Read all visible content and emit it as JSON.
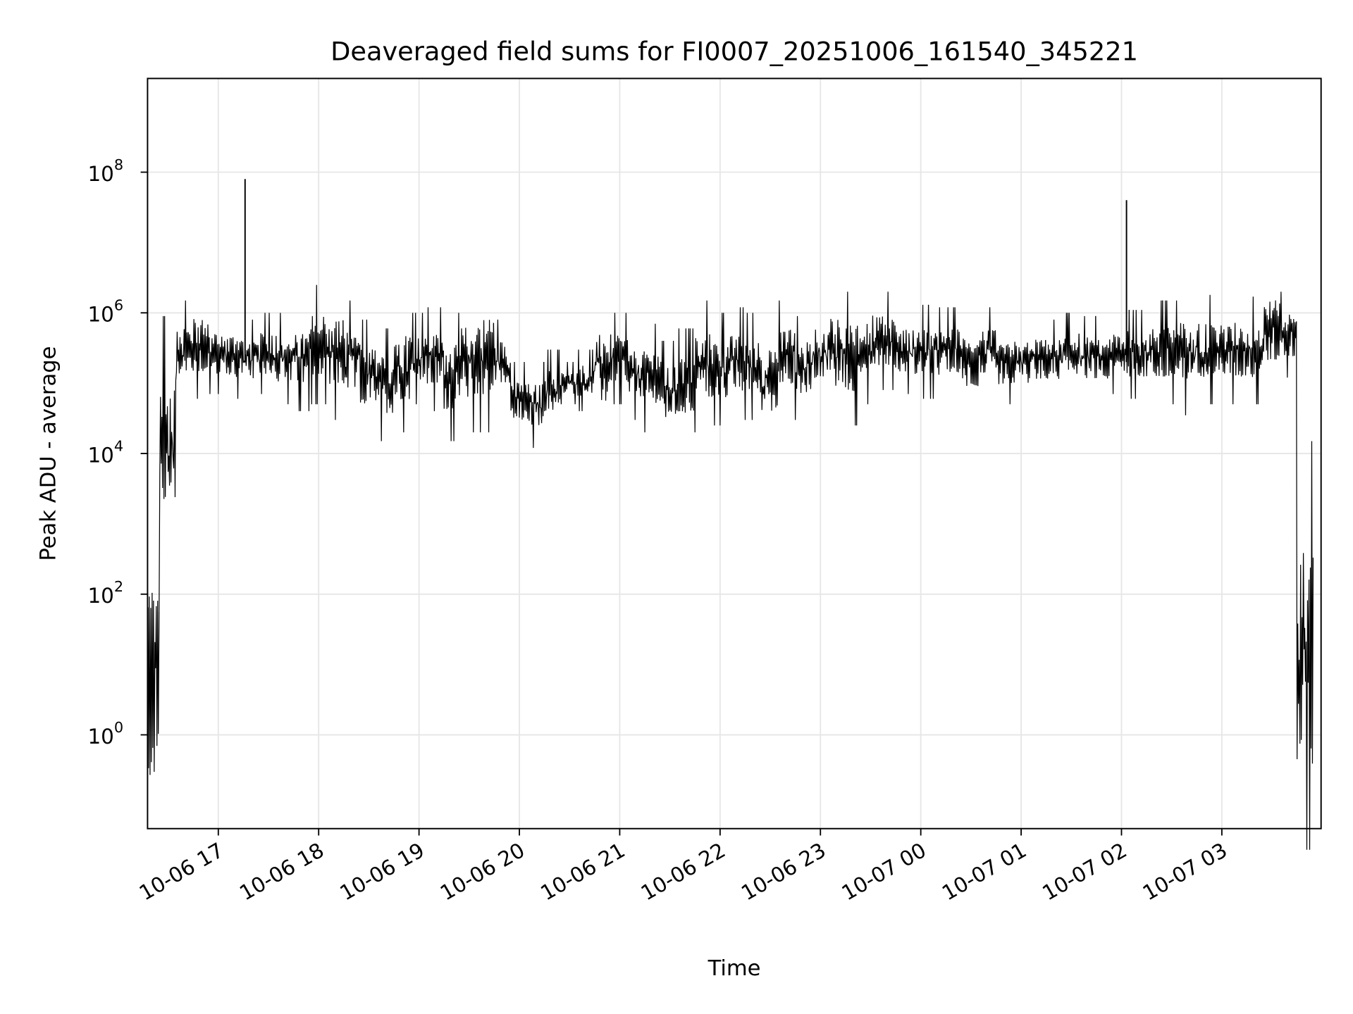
{
  "chart_data": {
    "type": "line",
    "title": "Deaveraged field sums for FI0007_20251006_161540_345221",
    "xlabel": "Time",
    "ylabel": "Peak ADU - average",
    "yscale": "log",
    "ylim": [
      0.0464,
      2150000000
    ],
    "xlim": [
      "10-06 16:17",
      "10-07 03:59"
    ],
    "grid": true,
    "line_color": "#000000",
    "grid_color": "#e6e6e6",
    "x_ticks": [
      "10-06 17",
      "10-06 18",
      "10-06 19",
      "10-06 20",
      "10-06 21",
      "10-06 22",
      "10-06 23",
      "10-07 00",
      "10-07 01",
      "10-07 02",
      "10-07 03"
    ],
    "y_ticks": [
      {
        "value": 100000000.0,
        "base": "10",
        "exp": "8"
      },
      {
        "value": 1000000.0,
        "base": "10",
        "exp": "6"
      },
      {
        "value": 10000.0,
        "base": "10",
        "exp": "4"
      },
      {
        "value": 100.0,
        "base": "10",
        "exp": "2"
      },
      {
        "value": 1,
        "base": "10",
        "exp": "0"
      }
    ],
    "series_note": "10-minute bins: [time, min, max]",
    "bins": [
      [
        "16:20",
        0.01,
        3000
      ],
      [
        "16:30",
        200,
        900000
      ],
      [
        "16:40",
        60000,
        1500000
      ],
      [
        "16:50",
        60000,
        2000000
      ],
      [
        "17:00",
        70000,
        1000000
      ],
      [
        "17:10",
        60000,
        1000000
      ],
      [
        "17:20",
        60000,
        800000
      ],
      [
        "17:30",
        70000,
        1000000
      ],
      [
        "17:40",
        50000,
        1000000
      ],
      [
        "17:50",
        40000,
        1200000
      ],
      [
        "18:00",
        50000,
        2500000
      ],
      [
        "18:10",
        30000,
        2500000
      ],
      [
        "18:20",
        30000,
        1500000
      ],
      [
        "18:30",
        20000,
        800000
      ],
      [
        "18:40",
        15000,
        600000
      ],
      [
        "18:50",
        20000,
        1500000
      ],
      [
        "19:00",
        50000,
        1000000
      ],
      [
        "19:10",
        40000,
        1200000
      ],
      [
        "19:20",
        15000,
        1000000
      ],
      [
        "19:30",
        20000,
        2000000
      ],
      [
        "19:40",
        20000,
        3000000
      ],
      [
        "19:50",
        50000,
        800000
      ],
      [
        "20:00",
        15000,
        200000
      ],
      [
        "20:10",
        12000,
        200000
      ],
      [
        "20:20",
        20000,
        300000
      ],
      [
        "20:30",
        50000,
        200000
      ],
      [
        "20:40",
        40000,
        300000
      ],
      [
        "20:50",
        18000,
        1500000
      ],
      [
        "21:00",
        50000,
        1000000
      ],
      [
        "21:10",
        30000,
        600000
      ],
      [
        "21:20",
        20000,
        700000
      ],
      [
        "21:30",
        13000,
        400000
      ],
      [
        "21:40",
        15000,
        600000
      ],
      [
        "21:50",
        20000,
        1500000
      ],
      [
        "22:00",
        25000,
        1000000
      ],
      [
        "22:10",
        30000,
        1200000
      ],
      [
        "22:20",
        30000,
        1000000
      ],
      [
        "22:30",
        15000,
        800000
      ],
      [
        "22:40",
        40000,
        1500000
      ],
      [
        "22:50",
        30000,
        900000
      ],
      [
        "23:00",
        50000,
        1500000
      ],
      [
        "23:10",
        25000,
        3500000
      ],
      [
        "23:20",
        25000,
        2000000
      ],
      [
        "23:30",
        50000,
        3000000
      ],
      [
        "23:40",
        80000,
        2000000
      ],
      [
        "23:50",
        70000,
        1200000
      ],
      [
        "00:00",
        60000,
        1300000
      ],
      [
        "00:10",
        60000,
        1200000
      ],
      [
        "00:20",
        70000,
        1200000
      ],
      [
        "00:30",
        40000,
        1000000
      ],
      [
        "00:40",
        60000,
        1200000
      ],
      [
        "00:50",
        50000,
        700000
      ],
      [
        "01:00",
        50000,
        800000
      ],
      [
        "01:10",
        60000,
        800000
      ],
      [
        "01:20",
        60000,
        800000
      ],
      [
        "01:30",
        70000,
        1000000
      ],
      [
        "01:40",
        60000,
        900000
      ],
      [
        "01:50",
        60000,
        800000
      ],
      [
        "02:00",
        70000,
        1100000
      ],
      [
        "02:10",
        60000,
        1100000
      ],
      [
        "02:20",
        50000,
        1500000
      ],
      [
        "02:30",
        50000,
        1500000
      ],
      [
        "02:40",
        35000,
        2000000
      ],
      [
        "02:50",
        50000,
        1800000
      ],
      [
        "03:00",
        60000,
        1500000
      ],
      [
        "03:10",
        50000,
        1800000
      ],
      [
        "03:20",
        50000,
        1700000
      ],
      [
        "03:30",
        80000,
        4000000
      ],
      [
        "03:40",
        120000,
        2000000
      ],
      [
        "03:50",
        0.01,
        15000
      ]
    ],
    "spikes": [
      [
        "17:16",
        80000000
      ],
      [
        "02:03",
        40000000
      ]
    ]
  }
}
